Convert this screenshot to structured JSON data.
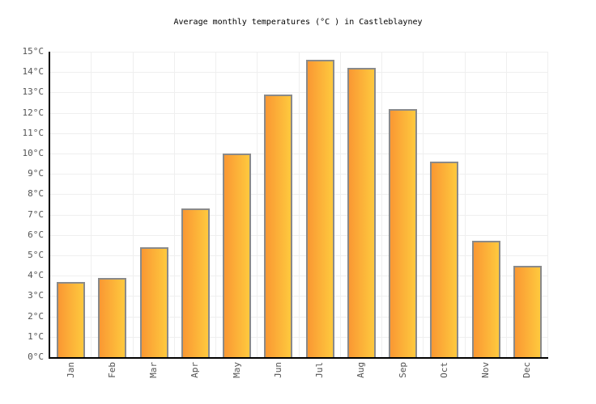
{
  "chart_data": {
    "type": "bar",
    "title": "Average monthly temperatures (°C ) in Castleblayney",
    "categories": [
      "Jan",
      "Feb",
      "Mar",
      "Apr",
      "May",
      "Jun",
      "Jul",
      "Aug",
      "Sep",
      "Oct",
      "Nov",
      "Dec"
    ],
    "values": [
      3.7,
      3.9,
      5.4,
      7.3,
      10.0,
      12.9,
      14.6,
      14.2,
      12.2,
      9.6,
      5.7,
      4.5
    ],
    "ylabel_suffix": "°C",
    "ylim": [
      0,
      15
    ],
    "ytick_step": 1,
    "grid": true,
    "legend": "none",
    "colors": {
      "bar_gradient_left": "#fa9833",
      "bar_gradient_right": "#fec93e",
      "bar_border": "#8a8a8a",
      "axis": "#000000",
      "gridline": "#efefef",
      "tick_label": "#545454",
      "title": "#000000",
      "background": "#ffffff"
    }
  }
}
